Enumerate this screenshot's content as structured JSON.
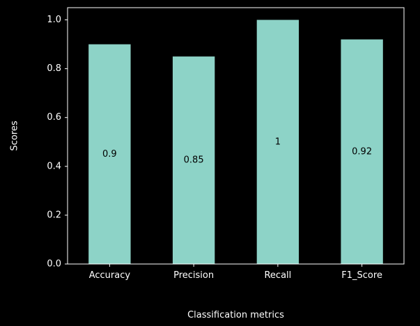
{
  "chart_data": {
    "type": "bar",
    "categories": [
      "Accuracy",
      "Precision",
      "Recall",
      "F1_Score"
    ],
    "values": [
      0.9,
      0.85,
      1.0,
      0.92
    ],
    "data_labels": [
      "0.9",
      "0.85",
      "1",
      "0.92"
    ],
    "xlabel": "Classification metrics",
    "ylabel": "Scores",
    "ylim": [
      0,
      1.05
    ],
    "yticks": [
      0.0,
      0.2,
      0.4,
      0.6,
      0.8,
      1.0
    ],
    "ytick_labels": [
      "0.0",
      "0.2",
      "0.4",
      "0.6",
      "0.8",
      "1.0"
    ],
    "grid": false,
    "colors": {
      "background": "#000000",
      "bar": "#8dd3c7",
      "axis": "#ffffff",
      "text": "#ffffff",
      "label": "#000000"
    }
  }
}
